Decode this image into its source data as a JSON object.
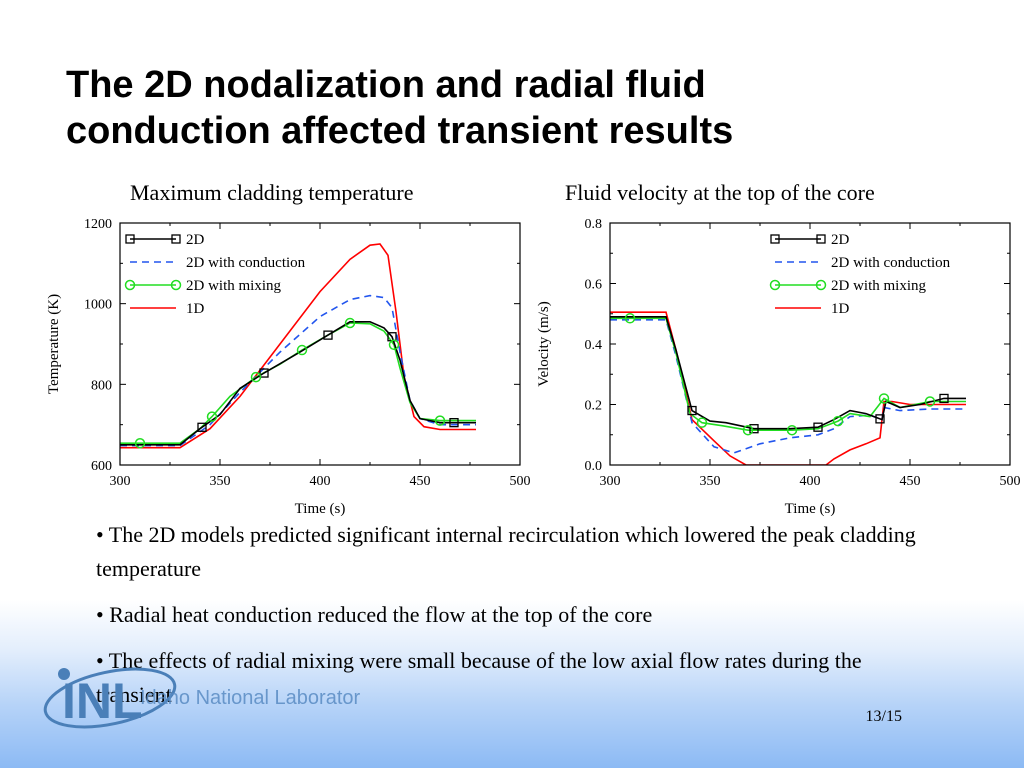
{
  "slide": {
    "title_line1": "The 2D nodalization and radial fluid",
    "title_line2": "conduction affected transient results",
    "caption_left": "Maximum cladding temperature",
    "caption_right": "Fluid velocity at the top of the core",
    "bullets": [
      "• The 2D models predicted significant internal recirculation which lowered the peak cladding temperature",
      "•  Radial heat conduction reduced the flow at the top of the core",
      "• The effects of radial mixing were small because of the low axial flow rates during the transient"
    ],
    "slide_number": "13/15",
    "logo_text": "INL",
    "logo_subtext": "Idaho National Laboratory"
  },
  "chart_data": [
    {
      "type": "line",
      "xlabel": "Time (s)",
      "ylabel": "Temperature (K)",
      "xlim": [
        300,
        500
      ],
      "ylim": [
        600,
        1200
      ],
      "xticks": [
        300,
        350,
        400,
        450,
        500
      ],
      "yticks": [
        600,
        800,
        1000,
        1200
      ],
      "legend_position": "top-left",
      "series": [
        {
          "name": "2D",
          "color": "#000000",
          "dash": "solid",
          "marker": "square",
          "x": [
            300,
            330,
            340,
            350,
            360,
            372,
            390,
            404,
            415,
            425,
            432,
            436,
            440,
            445,
            450,
            460,
            467,
            478
          ],
          "y": [
            650,
            650,
            690,
            725,
            790,
            828,
            880,
            922,
            955,
            955,
            940,
            918,
            860,
            760,
            715,
            705,
            705,
            705
          ],
          "markers_x": [
            341,
            372,
            404,
            436,
            467
          ]
        },
        {
          "name": "2D with conduction",
          "color": "#2255ee",
          "dash": "dashed",
          "marker": "none",
          "x": [
            300,
            330,
            345,
            360,
            380,
            400,
            415,
            425,
            432,
            436,
            440,
            445,
            450,
            460,
            478
          ],
          "y": [
            648,
            648,
            700,
            780,
            880,
            968,
            1010,
            1020,
            1015,
            990,
            880,
            760,
            715,
            700,
            700
          ]
        },
        {
          "name": "2D with mixing",
          "color": "#22dd22",
          "dash": "solid",
          "marker": "circle",
          "x": [
            300,
            330,
            340,
            346,
            355,
            368,
            380,
            391,
            404,
            415,
            425,
            432,
            437,
            440,
            445,
            450,
            460,
            478
          ],
          "y": [
            654,
            654,
            690,
            720,
            770,
            818,
            850,
            885,
            922,
            952,
            950,
            932,
            898,
            840,
            755,
            715,
            710,
            710
          ],
          "markers_x": [
            310,
            346,
            368,
            391,
            415,
            437,
            460
          ]
        },
        {
          "name": "1D",
          "color": "#ff0000",
          "dash": "solid",
          "marker": "none",
          "x": [
            300,
            330,
            345,
            360,
            380,
            400,
            415,
            425,
            430,
            434,
            438,
            442,
            447,
            452,
            460,
            478
          ],
          "y": [
            643,
            643,
            690,
            770,
            900,
            1030,
            1110,
            1145,
            1148,
            1120,
            980,
            820,
            720,
            695,
            688,
            688
          ]
        }
      ]
    },
    {
      "type": "line",
      "xlabel": "Time (s)",
      "ylabel": "Velocity (m/s)",
      "xlim": [
        300,
        500
      ],
      "ylim": [
        0,
        0.8
      ],
      "xticks": [
        300,
        350,
        400,
        450,
        500
      ],
      "yticks": [
        0.0,
        0.2,
        0.4,
        0.6,
        0.8
      ],
      "ytick_labels": [
        "0.0",
        "0.2",
        "0.4",
        "0.6",
        "0.8"
      ],
      "legend_position": "top-right",
      "series": [
        {
          "name": "2D",
          "color": "#000000",
          "dash": "solid",
          "marker": "square",
          "x": [
            300,
            328,
            333,
            341,
            350,
            358,
            372,
            390,
            404,
            412,
            420,
            428,
            434,
            436,
            438,
            445,
            455,
            467,
            478
          ],
          "y": [
            0.49,
            0.49,
            0.38,
            0.18,
            0.145,
            0.14,
            0.12,
            0.12,
            0.125,
            0.15,
            0.18,
            0.17,
            0.155,
            0.15,
            0.21,
            0.19,
            0.2,
            0.22,
            0.22
          ],
          "markers_x": [
            341,
            372,
            404,
            435,
            467
          ]
        },
        {
          "name": "2D with conduction",
          "color": "#2255ee",
          "dash": "dashed",
          "marker": "none",
          "x": [
            300,
            328,
            333,
            341,
            352,
            362,
            375,
            390,
            404,
            412,
            420,
            430,
            436,
            437,
            445,
            460,
            478
          ],
          "y": [
            0.48,
            0.48,
            0.36,
            0.14,
            0.06,
            0.04,
            0.07,
            0.09,
            0.1,
            0.12,
            0.16,
            0.165,
            0.15,
            0.19,
            0.18,
            0.185,
            0.185
          ]
        },
        {
          "name": "2D with mixing",
          "color": "#22dd22",
          "dash": "solid",
          "marker": "circle",
          "x": [
            300,
            328,
            333,
            340,
            346,
            356,
            369,
            391,
            404,
            414,
            420,
            430,
            437,
            445,
            460,
            478
          ],
          "y": [
            0.485,
            0.485,
            0.37,
            0.17,
            0.14,
            0.13,
            0.115,
            0.115,
            0.12,
            0.145,
            0.17,
            0.16,
            0.22,
            0.19,
            0.21,
            0.21
          ],
          "markers_x": [
            310,
            346,
            369,
            391,
            414,
            437,
            460
          ]
        },
        {
          "name": "1D",
          "color": "#ff0000",
          "dash": "solid",
          "marker": "none",
          "x": [
            300,
            328,
            333,
            341,
            352,
            360,
            368,
            380,
            395,
            408,
            412,
            420,
            428,
            435,
            437,
            441,
            450,
            460,
            478
          ],
          "y": [
            0.505,
            0.505,
            0.38,
            0.15,
            0.08,
            0.03,
            0.0,
            0.0,
            0.0,
            0.0,
            0.02,
            0.05,
            0.07,
            0.09,
            0.21,
            0.21,
            0.2,
            0.2,
            0.2
          ]
        }
      ]
    }
  ]
}
